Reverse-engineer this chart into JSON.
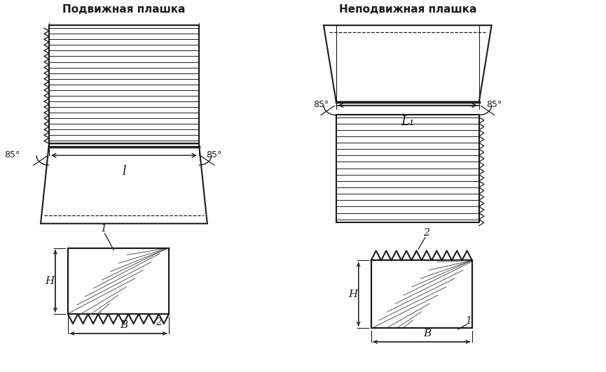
{
  "title_left": "Подвижная плашка",
  "title_right": "Неподвижная плашка",
  "label_L": "l",
  "label_L1": "L₁",
  "label_H": "H",
  "label_B": "B",
  "label_85": "85°",
  "label_1_left": "1",
  "label_2_left": "2",
  "label_2_right": "2",
  "label_1_right": "1",
  "bg_color": "#ffffff",
  "line_color": "#1a1a1a"
}
